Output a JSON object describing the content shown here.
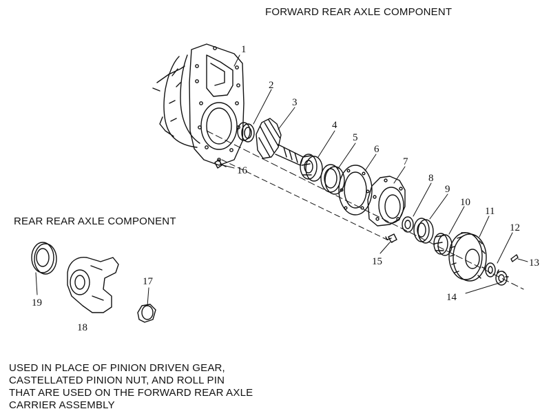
{
  "titles": {
    "forward": "FORWARD REAR AXLE COMPONENT",
    "rear": "REAR REAR AXLE COMPONENT"
  },
  "note": {
    "lines": [
      "USED IN PLACE OF PINION DRIVEN GEAR,",
      "CASTELLATED PINION NUT, AND ROLL PIN",
      "THAT ARE USED ON THE FORWARD REAR AXLE",
      "CARRIER ASSEMBLY"
    ]
  },
  "callouts": {
    "c1": "1",
    "c2": "2",
    "c3": "3",
    "c4": "4",
    "c5": "5",
    "c6": "6",
    "c7": "7",
    "c8": "8",
    "c9": "9",
    "c10": "10",
    "c11": "11",
    "c12": "12",
    "c13": "13",
    "c14": "14",
    "c15": "15",
    "c16": "16",
    "c17": "17",
    "c18": "18",
    "c19": "19"
  }
}
